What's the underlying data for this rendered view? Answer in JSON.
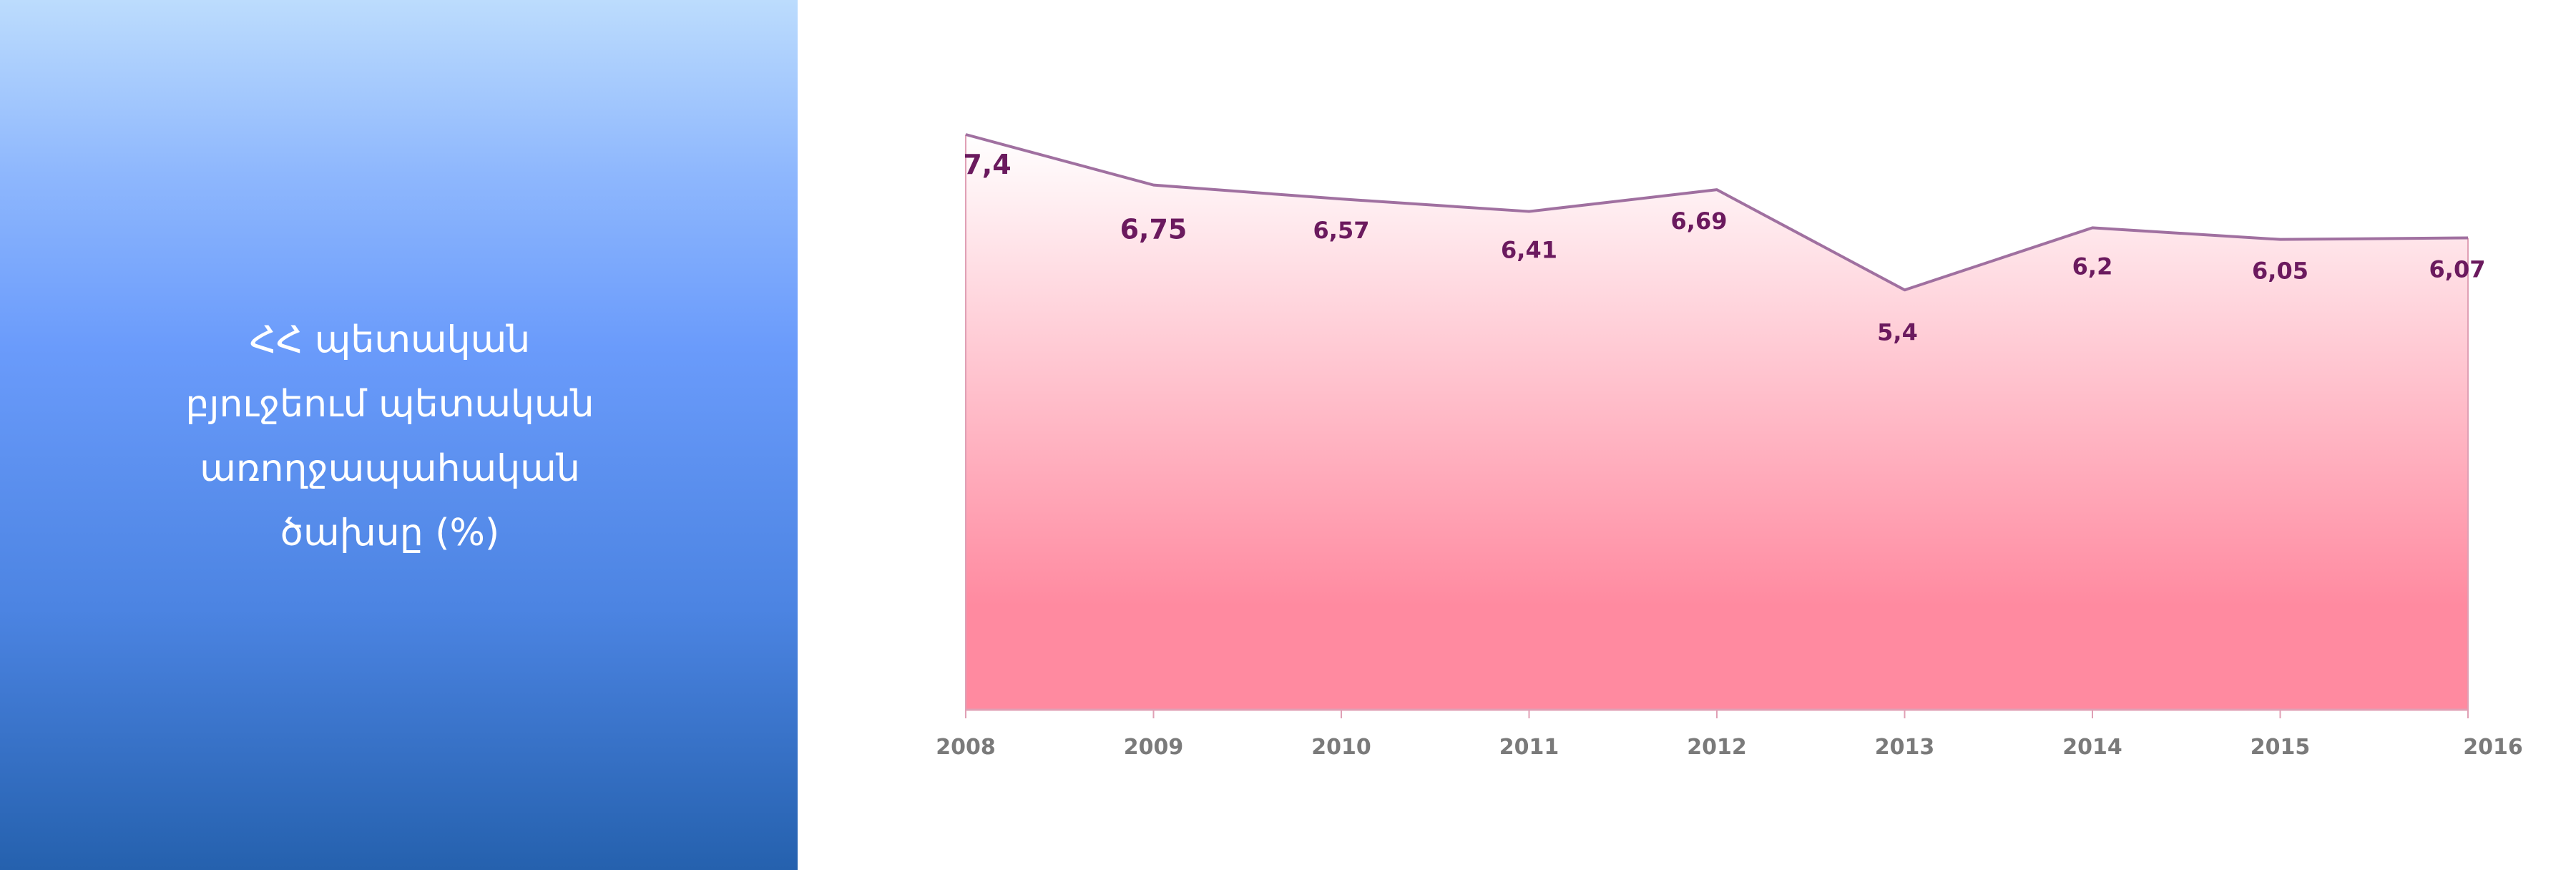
{
  "panel": {
    "title": "ՀՀ պետական\nբյուջեում պետական\nառողջապահական\nծախսը (%)"
  },
  "colors": {
    "panel_top": "#bcdcfd",
    "panel_bottom": "#2561ae",
    "area_top": "#ffffff",
    "area_bottom": "#ff8aa0",
    "line": "#a070a0",
    "label": "#6b1a5e",
    "axis": "#e0a0b5",
    "tick_text": "#7a7a7a"
  },
  "chart_data": {
    "type": "area",
    "x": [
      "2008",
      "2009",
      "2010",
      "2011",
      "2012",
      "2013",
      "2014",
      "2015",
      "2016"
    ],
    "series": [
      {
        "values": [
          7.4,
          6.75,
          6.57,
          6.41,
          6.69,
          5.4,
          6.2,
          6.05,
          6.07
        ],
        "labels": [
          "7,4",
          "6,75",
          "6,57",
          "6,41",
          "6,69",
          "5,4",
          "6,2",
          "6,05",
          "6,07"
        ]
      }
    ],
    "ylim": [
      0,
      7.4
    ],
    "grid": false,
    "legend": "none"
  }
}
